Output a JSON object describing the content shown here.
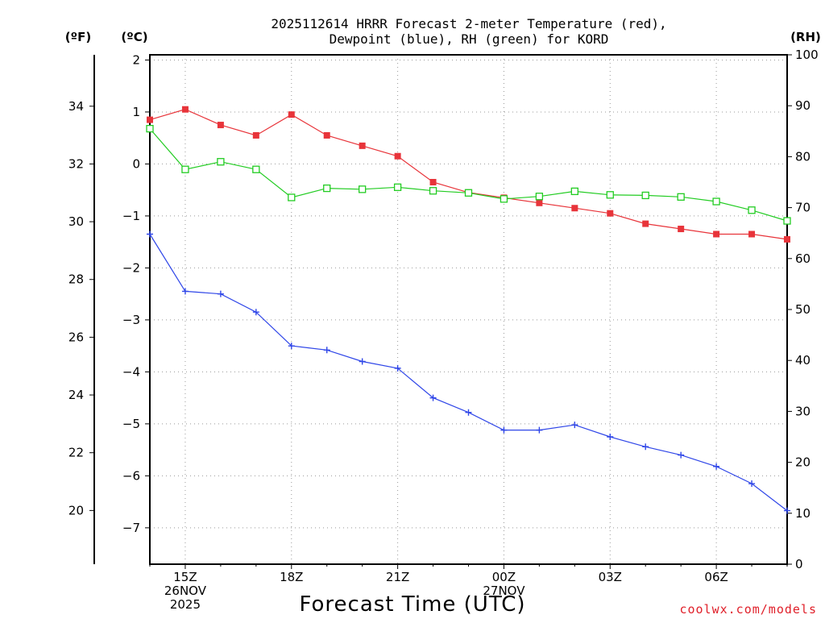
{
  "chart_data": {
    "type": "line",
    "title_line1": "2025112614 HRRR Forecast 2-meter Temperature (red),",
    "title_line2": "Dewpoint (blue), RH (green) for KORD",
    "xlabel": "Forecast Time (UTC)",
    "credit": "coolwx.com/models",
    "axis_units": {
      "fahrenheit": "(ºF)",
      "celsius": "(ºC)",
      "rh": "(RH)"
    },
    "x_hours": [
      14,
      15,
      16,
      17,
      18,
      19,
      20,
      21,
      22,
      23,
      24,
      25,
      26,
      27,
      28,
      29,
      30,
      31,
      32
    ],
    "x_ticks": [
      {
        "hour": 15,
        "lines": [
          "15Z",
          "26NOV",
          "2025"
        ]
      },
      {
        "hour": 18,
        "lines": [
          "18Z"
        ]
      },
      {
        "hour": 21,
        "lines": [
          "21Z"
        ]
      },
      {
        "hour": 24,
        "lines": [
          "00Z",
          "27NOV"
        ]
      },
      {
        "hour": 27,
        "lines": [
          "03Z"
        ]
      },
      {
        "hour": 30,
        "lines": [
          "06Z"
        ]
      }
    ],
    "celsius_range": [
      -7.7,
      2.1
    ],
    "celsius_ticks": [
      "2",
      "1",
      "0",
      "−1",
      "−2",
      "−3",
      "−4",
      "−5",
      "−6",
      "−7"
    ],
    "fahrenheit_ticks": [
      "34",
      "32",
      "30",
      "28",
      "26",
      "24",
      "22",
      "20"
    ],
    "rh_range": [
      0,
      100
    ],
    "rh_ticks": [
      "100",
      "90",
      "80",
      "70",
      "60",
      "50",
      "40",
      "30",
      "20",
      "10",
      "0"
    ],
    "series": [
      {
        "name": "Temperature",
        "units": "C",
        "color": "#e8343a",
        "marker": "filled-square",
        "values": [
          0.85,
          1.05,
          0.75,
          0.55,
          0.95,
          0.55,
          0.35,
          0.15,
          -0.35,
          -0.55,
          -0.65,
          -0.75,
          -0.85,
          -0.95,
          -1.15,
          -1.25,
          -1.35,
          -1.35,
          -1.45
        ]
      },
      {
        "name": "Dewpoint",
        "units": "C",
        "color": "#2f46e8",
        "marker": "plus",
        "values": [
          -1.35,
          -2.45,
          -2.5,
          -2.85,
          -3.5,
          -3.58,
          -3.8,
          -3.93,
          -4.5,
          -4.78,
          -5.12,
          -5.12,
          -5.02,
          -5.25,
          -5.44,
          -5.6,
          -5.82,
          -6.15,
          -6.67
        ]
      },
      {
        "name": "RH",
        "units": "%",
        "color": "#22cc22",
        "marker": "open-square",
        "values": [
          85.5,
          77.5,
          79,
          77.5,
          72,
          73.8,
          73.6,
          74,
          73.3,
          72.9,
          71.7,
          72.2,
          73.2,
          72.5,
          72.4,
          72.1,
          71.2,
          69.5,
          67.4
        ]
      }
    ]
  }
}
